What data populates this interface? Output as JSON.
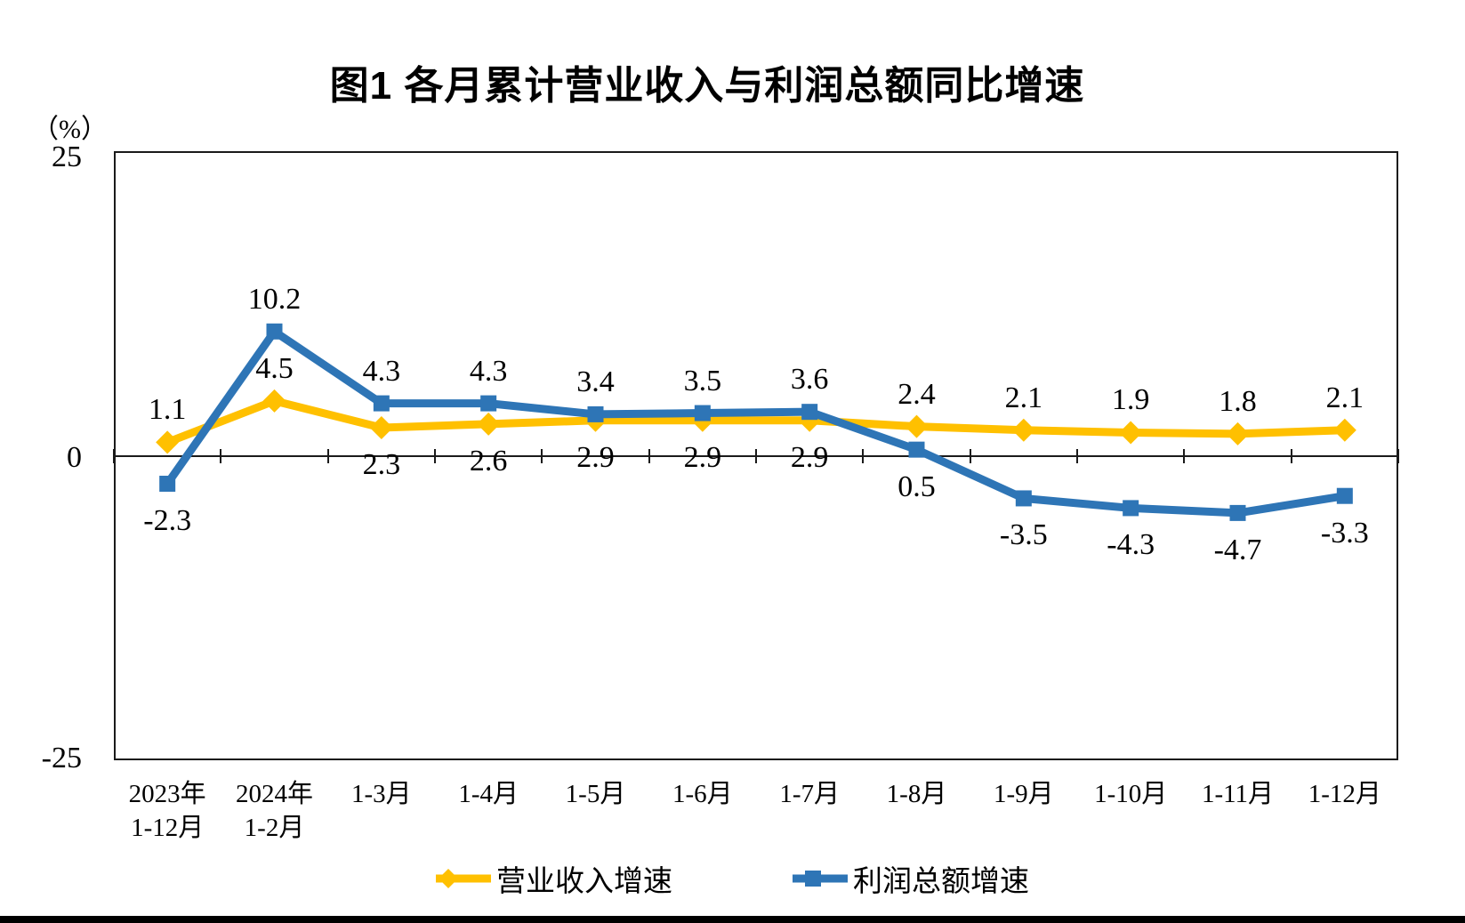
{
  "chart_data": {
    "type": "line",
    "title": "图1  各月累计营业收入与利润总额同比增速",
    "ylabel": "（%）",
    "ylim": [
      -25,
      25
    ],
    "yticks": [
      25,
      0,
      -25
    ],
    "grid": false,
    "legend_position": "bottom",
    "categories": [
      [
        "2023年",
        "1-12月"
      ],
      [
        "2024年",
        "1-2月"
      ],
      [
        "1-3月"
      ],
      [
        "1-4月"
      ],
      [
        "1-5月"
      ],
      [
        "1-6月"
      ],
      [
        "1-7月"
      ],
      [
        "1-8月"
      ],
      [
        "1-9月"
      ],
      [
        "1-10月"
      ],
      [
        "1-11月"
      ],
      [
        "1-12月"
      ]
    ],
    "series": [
      {
        "name": "营业收入增速",
        "color": "#FFC000",
        "marker": "diamond",
        "values": [
          1.1,
          4.5,
          2.3,
          2.6,
          2.9,
          2.9,
          2.9,
          2.4,
          2.1,
          1.9,
          1.8,
          2.1
        ],
        "label_pos": [
          "above",
          "above",
          "below",
          "below",
          "below",
          "below",
          "below",
          "above",
          "above",
          "above",
          "above",
          "above"
        ]
      },
      {
        "name": "利润总额增速",
        "color": "#2E75B6",
        "marker": "square",
        "values": [
          -2.3,
          10.2,
          4.3,
          4.3,
          3.4,
          3.5,
          3.6,
          0.5,
          -3.5,
          -4.3,
          -4.7,
          -3.3
        ],
        "label_pos": [
          "below",
          "above",
          "above",
          "above",
          "above",
          "above",
          "above",
          "below",
          "below",
          "below",
          "below",
          "below"
        ]
      }
    ]
  },
  "figure": {
    "bottom_bar_color": "#000000"
  }
}
